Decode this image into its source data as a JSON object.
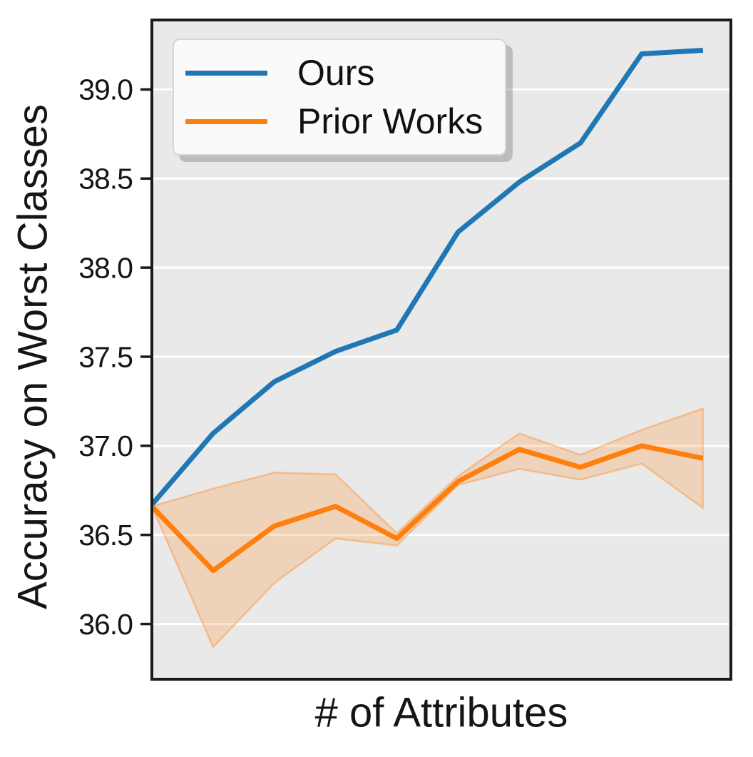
{
  "figure": {
    "background_color": "#ffffff",
    "plot_background_color": "#e9e9e9",
    "grid_color": "#ffffff",
    "spine_color": "#1a1a1a",
    "text_color": "#151515"
  },
  "chart_data": {
    "type": "line",
    "title": "",
    "xlabel": "# of Attributes",
    "ylabel": "Accuracy on Worst Classes",
    "x": [
      1,
      2,
      3,
      4,
      5,
      6,
      7,
      8,
      9,
      10
    ],
    "xtick_labels_visible": false,
    "ylim": [
      35.69,
      39.39
    ],
    "yticks": [
      36.0,
      36.5,
      37.0,
      37.5,
      38.0,
      38.5,
      39.0
    ],
    "ytick_labels": [
      "36.0",
      "36.5",
      "37.0",
      "37.5",
      "38.0",
      "38.5",
      "39.0"
    ],
    "grid": "horizontal-only",
    "legend_position": "upper-left",
    "series": [
      {
        "name": "Ours",
        "color": "#1f77b4",
        "values": [
          36.67,
          37.07,
          37.36,
          37.53,
          37.65,
          38.2,
          38.48,
          38.7,
          39.2,
          39.22
        ]
      },
      {
        "name": "Prior Works",
        "color": "#ff7f0e",
        "values": [
          36.66,
          36.3,
          36.55,
          36.66,
          36.48,
          36.8,
          36.98,
          36.88,
          37.0,
          36.93
        ],
        "band_lower": [
          36.66,
          35.87,
          36.23,
          36.48,
          36.44,
          36.78,
          36.87,
          36.81,
          36.9,
          36.65
        ],
        "band_upper": [
          36.66,
          36.76,
          36.85,
          36.84,
          36.51,
          36.83,
          37.07,
          36.95,
          37.09,
          37.21
        ],
        "band_color": "#ff7f0e"
      }
    ]
  }
}
